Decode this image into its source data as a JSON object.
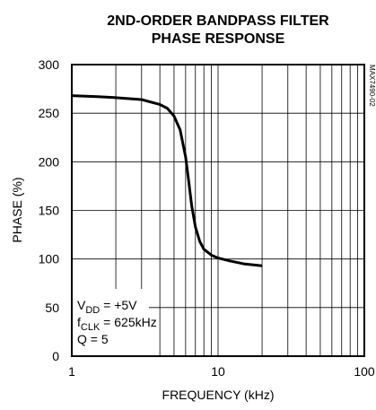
{
  "chart_data": {
    "type": "line",
    "title": "2ND-ORDER BANDPASS FILTER",
    "subtitle": "PHASE RESPONSE",
    "xlabel": "FREQUENCY (kHz)",
    "ylabel": "PHASE (%)",
    "xscale": "log",
    "xlim": [
      1,
      100
    ],
    "xticks": [
      1,
      10,
      100
    ],
    "xminor": [
      2,
      3,
      4,
      5,
      6,
      7,
      8,
      9,
      20,
      30,
      40,
      50,
      60,
      70,
      80,
      90
    ],
    "ylim": [
      0,
      300
    ],
    "yticks": [
      0,
      50,
      100,
      150,
      200,
      250,
      300
    ],
    "grid": true,
    "x": [
      1,
      1.5,
      2,
      3,
      4,
      4.5,
      5,
      5.5,
      6,
      6.3,
      6.6,
      7,
      7.5,
      8,
      9,
      10,
      12,
      15,
      20
    ],
    "series": [
      {
        "name": "Phase",
        "color": "#000000",
        "values": [
          268,
          267,
          266,
          264,
          259,
          255,
          247,
          233,
          205,
          180,
          155,
          133,
          118,
          110,
          104,
          101,
          98,
          95,
          93
        ]
      }
    ],
    "annotations": [
      [
        "V",
        "DD",
        " = +5V"
      ],
      [
        "f",
        "CLK",
        " = 625kHz"
      ],
      [
        "Q = 5"
      ]
    ],
    "figure_id": "MAX7490-02"
  }
}
